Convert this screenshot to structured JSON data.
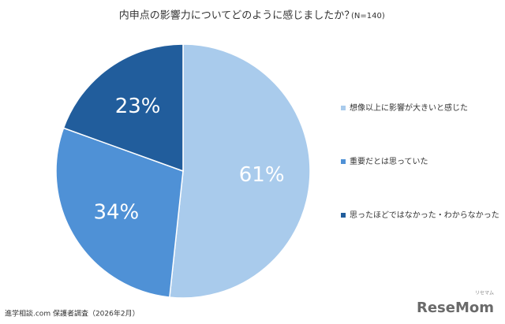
{
  "chart_data": {
    "type": "pie",
    "title": "内申点の影響力についてどのように感じましたか？",
    "subtitle": "(N=140)",
    "categories": [
      "想像以上に影響が大きいと感じた",
      "重要だとは思っていた",
      "思ったほどではなかった・わからなかった"
    ],
    "values": [
      61,
      34,
      23
    ],
    "value_labels": [
      "61%",
      "34%",
      "23%"
    ],
    "colors": [
      "#a9cbec",
      "#4f91d6",
      "#215d9c"
    ],
    "legend": "right"
  },
  "footer": {
    "source": "進学相談.com 保護者調査（2026年2月）",
    "logo": "ReseMom",
    "logo_sub": "リセマム"
  }
}
